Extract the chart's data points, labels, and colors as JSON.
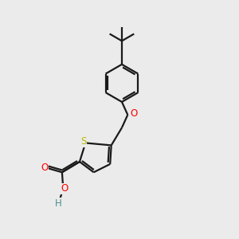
{
  "bg_color": "#ebebeb",
  "bond_color": "#1a1a1a",
  "S_color": "#b8b800",
  "O_color": "#ff0000",
  "H_color": "#4a9090",
  "line_width": 1.6,
  "figsize": [
    3.0,
    3.0
  ],
  "dpi": 100,
  "xlim": [
    0,
    10
  ],
  "ylim": [
    0,
    10
  ]
}
